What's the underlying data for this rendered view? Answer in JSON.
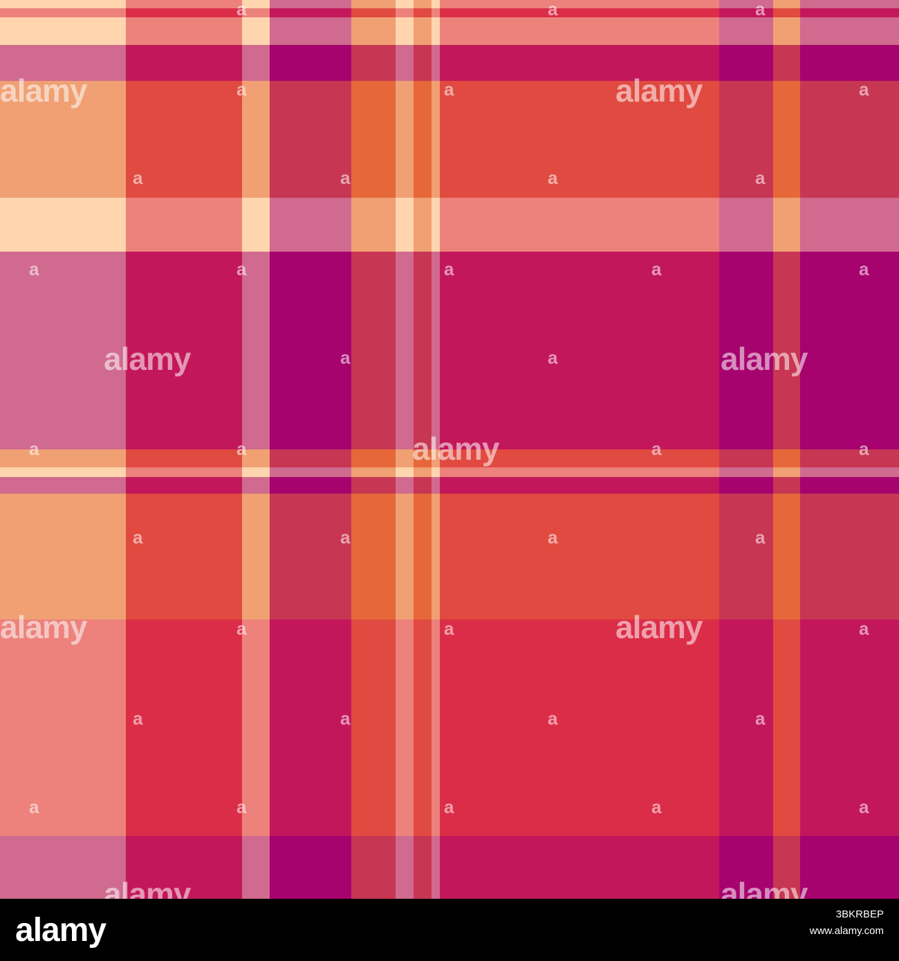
{
  "image": {
    "description_colors": {
      "magenta": "#a6036e",
      "crimson": "#c3175b",
      "red": "#dc2d48",
      "orange_red": "#e14a40",
      "orange": "#e6683a",
      "salmon": "#ec827b",
      "peach": "#f0a073",
      "pink_mauve": "#d06a8e",
      "rose": "#c73652",
      "cream": "#fed5ae"
    },
    "watermark_text": "alamy",
    "watermark_small": "a"
  },
  "footer": {
    "logo": "alamy",
    "image_id": "3BKRBEP",
    "url": "www.alamy.com"
  }
}
